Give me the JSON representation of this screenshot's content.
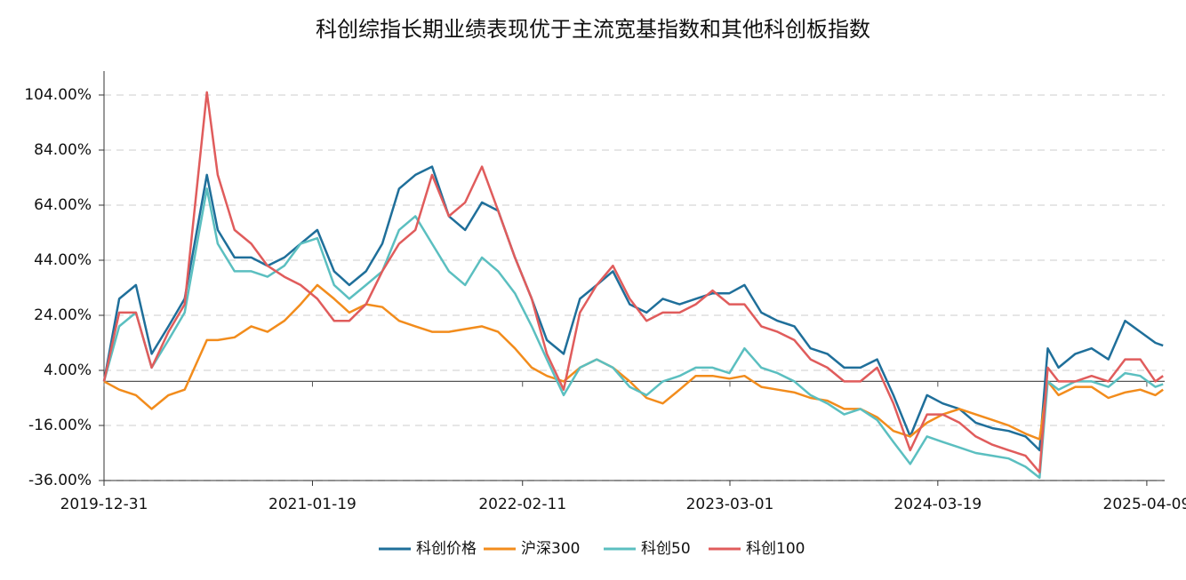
{
  "chart_data": {
    "type": "line",
    "title": "科创综指长期业绩表现优于主流宽基指数和其他科创板指数",
    "x": [
      "2019-12-31",
      "2020-01-28",
      "2020-02-28",
      "2020-03-28",
      "2020-04-28",
      "2020-05-28",
      "2020-07-08",
      "2020-07-28",
      "2020-08-28",
      "2020-09-28",
      "2020-10-28",
      "2020-11-28",
      "2020-12-28",
      "2021-01-28",
      "2021-02-28",
      "2021-03-28",
      "2021-04-28",
      "2021-05-28",
      "2021-06-28",
      "2021-07-28",
      "2021-08-28",
      "2021-09-28",
      "2021-10-28",
      "2021-11-28",
      "2021-12-28",
      "2022-01-28",
      "2022-02-28",
      "2022-03-28",
      "2022-04-28",
      "2022-05-28",
      "2022-06-28",
      "2022-07-28",
      "2022-08-28",
      "2022-09-28",
      "2022-10-28",
      "2022-11-28",
      "2022-12-28",
      "2023-01-28",
      "2023-02-28",
      "2023-03-28",
      "2023-04-28",
      "2023-05-28",
      "2023-06-28",
      "2023-07-28",
      "2023-08-28",
      "2023-09-28",
      "2023-10-28",
      "2023-11-28",
      "2023-12-28",
      "2024-01-28",
      "2024-02-28",
      "2024-03-28",
      "2024-04-28",
      "2024-05-28",
      "2024-06-28",
      "2024-07-28",
      "2024-08-28",
      "2024-09-23",
      "2024-10-08",
      "2024-10-28",
      "2024-11-28",
      "2024-12-28",
      "2025-01-28",
      "2025-02-28",
      "2025-03-28",
      "2025-04-25",
      "2025-05-09"
    ],
    "series": [
      {
        "name": "科创价格",
        "color": "#1f6f9a",
        "values": [
          0,
          30,
          35,
          10,
          20,
          30,
          75,
          55,
          45,
          45,
          42,
          45,
          50,
          55,
          40,
          35,
          40,
          50,
          70,
          75,
          78,
          60,
          55,
          65,
          62,
          45,
          30,
          15,
          10,
          30,
          35,
          40,
          28,
          25,
          30,
          28,
          30,
          32,
          32,
          35,
          25,
          22,
          20,
          12,
          10,
          5,
          5,
          8,
          -5,
          -20,
          -5,
          -8,
          -10,
          -15,
          -17,
          -18,
          -20,
          -25,
          12,
          5,
          10,
          12,
          8,
          22,
          18,
          14,
          13
        ]
      },
      {
        "name": "沪深300",
        "color": "#f28c1c",
        "values": [
          0,
          -3,
          -5,
          -10,
          -5,
          -3,
          15,
          15,
          16,
          20,
          18,
          22,
          28,
          35,
          30,
          25,
          28,
          27,
          22,
          20,
          18,
          18,
          19,
          20,
          18,
          12,
          5,
          2,
          0,
          5,
          8,
          5,
          0,
          -6,
          -8,
          -3,
          2,
          2,
          1,
          2,
          -2,
          -3,
          -4,
          -6,
          -7,
          -10,
          -10,
          -13,
          -18,
          -20,
          -15,
          -12,
          -10,
          -12,
          -14,
          -16,
          -19,
          -21,
          0,
          -5,
          -2,
          -2,
          -6,
          -4,
          -3,
          -5,
          -3
        ]
      },
      {
        "name": "科创50",
        "color": "#5bbfc0",
        "values": [
          0,
          20,
          25,
          5,
          15,
          25,
          70,
          50,
          40,
          40,
          38,
          42,
          50,
          52,
          35,
          30,
          35,
          40,
          55,
          60,
          50,
          40,
          35,
          45,
          40,
          32,
          20,
          8,
          -5,
          5,
          8,
          5,
          -2,
          -5,
          0,
          2,
          5,
          5,
          3,
          12,
          5,
          3,
          0,
          -5,
          -8,
          -12,
          -10,
          -14,
          -22,
          -30,
          -20,
          -22,
          -24,
          -26,
          -27,
          -28,
          -31,
          -35,
          0,
          -3,
          0,
          0,
          -2,
          3,
          2,
          -2,
          -1
        ]
      },
      {
        "name": "科创100",
        "color": "#e05c5c",
        "values": [
          0,
          25,
          25,
          5,
          18,
          28,
          105,
          75,
          55,
          50,
          42,
          38,
          35,
          30,
          22,
          22,
          28,
          40,
          50,
          55,
          75,
          60,
          65,
          78,
          62,
          45,
          30,
          10,
          -3,
          25,
          35,
          42,
          30,
          22,
          25,
          25,
          28,
          33,
          28,
          28,
          20,
          18,
          15,
          8,
          5,
          0,
          0,
          5,
          -8,
          -25,
          -12,
          -12,
          -15,
          -20,
          -23,
          -25,
          -27,
          -33,
          5,
          0,
          0,
          2,
          0,
          8,
          8,
          0,
          2
        ]
      }
    ],
    "xlim": [
      "2019-12-31",
      "2025-05-12"
    ],
    "xticks": [
      "2019-12-31",
      "2021-01-19",
      "2022-02-11",
      "2023-03-01",
      "2024-03-19",
      "2025-04-09"
    ],
    "ylim": [
      -36,
      112.7
    ],
    "yticks": [
      {
        "value": -36,
        "label": "-36.00%"
      },
      {
        "value": -16,
        "label": "-16.00%"
      },
      {
        "value": 4,
        "label": "4.00%"
      },
      {
        "value": 24,
        "label": "24.00%"
      },
      {
        "value": 44,
        "label": "44.00%"
      },
      {
        "value": 64,
        "label": "64.00%"
      },
      {
        "value": 84,
        "label": "84.00%"
      },
      {
        "value": 104,
        "label": "104.00%"
      }
    ],
    "grid": true,
    "legend": "bottom"
  }
}
